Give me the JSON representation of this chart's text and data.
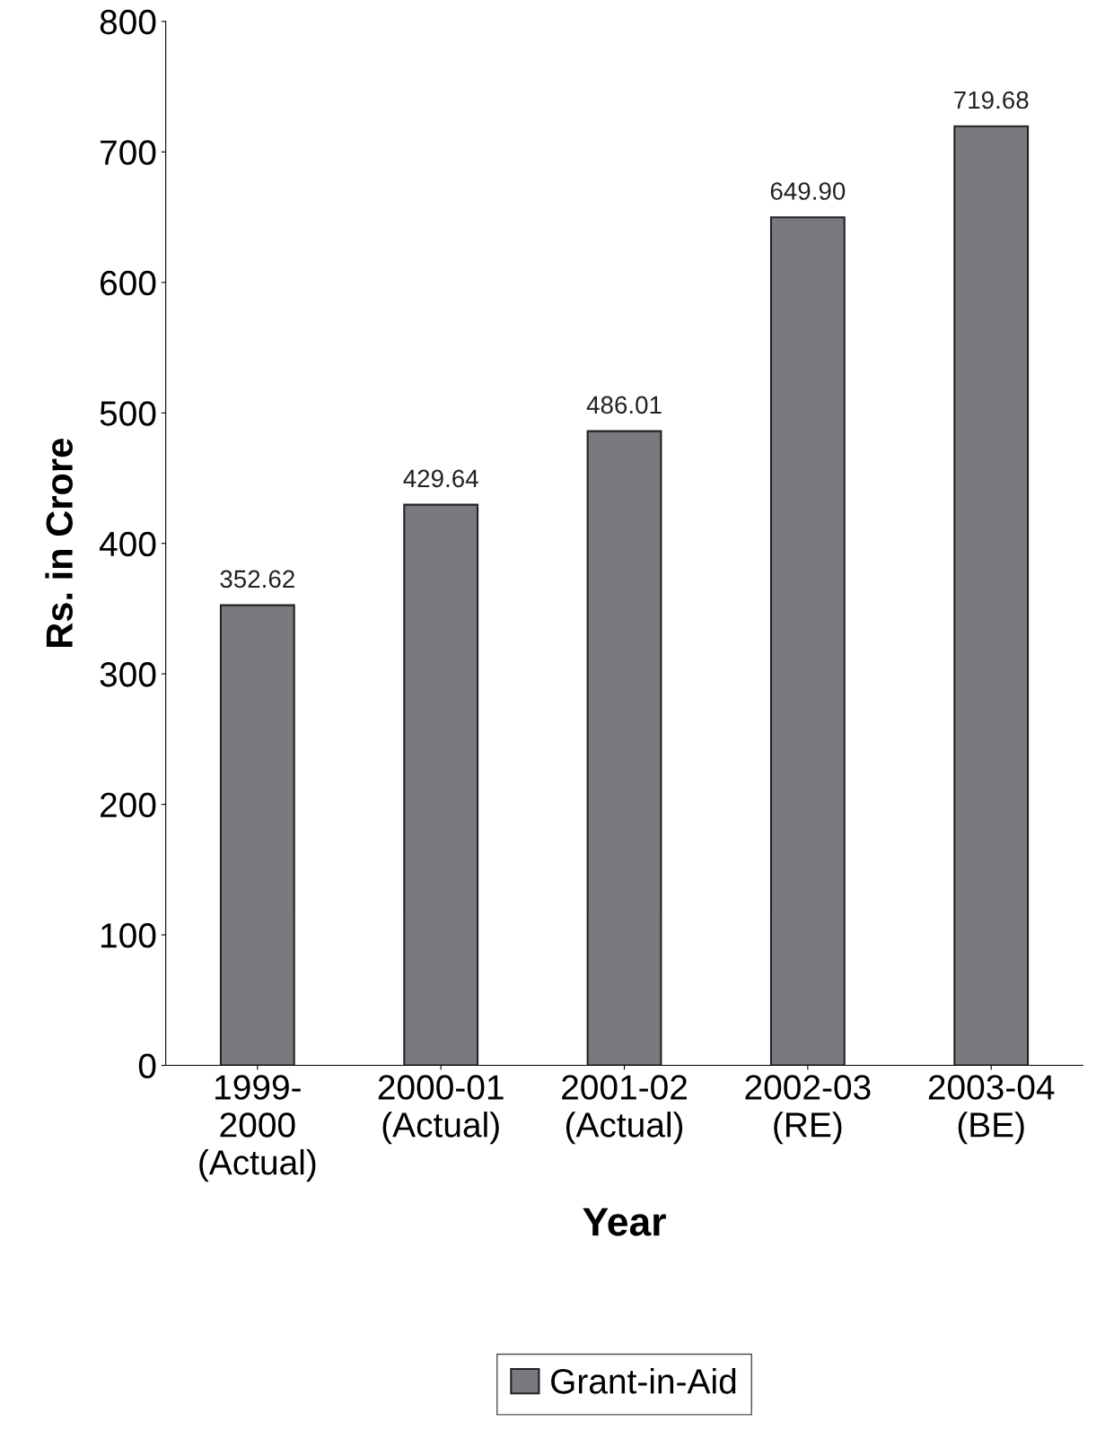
{
  "chart_data": {
    "type": "bar",
    "categories": [
      "1999-\n2000\n(Actual)",
      "2000-01\n(Actual)",
      "2001-02\n(Actual)",
      "2002-03\n(RE)",
      "2003-04\n(BE)"
    ],
    "series": [
      {
        "name": "Grant-in-Aid",
        "color": "#7b7880",
        "values": [
          352.62,
          429.64,
          486.01,
          649.9,
          719.68
        ],
        "value_labels": [
          "352.62",
          "429.64",
          "486.01",
          "649.90",
          "719.68"
        ]
      }
    ],
    "xlabel": "Year",
    "ylabel": "Rs. in Crore",
    "ylim": [
      0,
      800
    ],
    "yticks": [
      0,
      100,
      200,
      300,
      400,
      500,
      600,
      700,
      800
    ],
    "grid": false,
    "legend": "bottom"
  }
}
